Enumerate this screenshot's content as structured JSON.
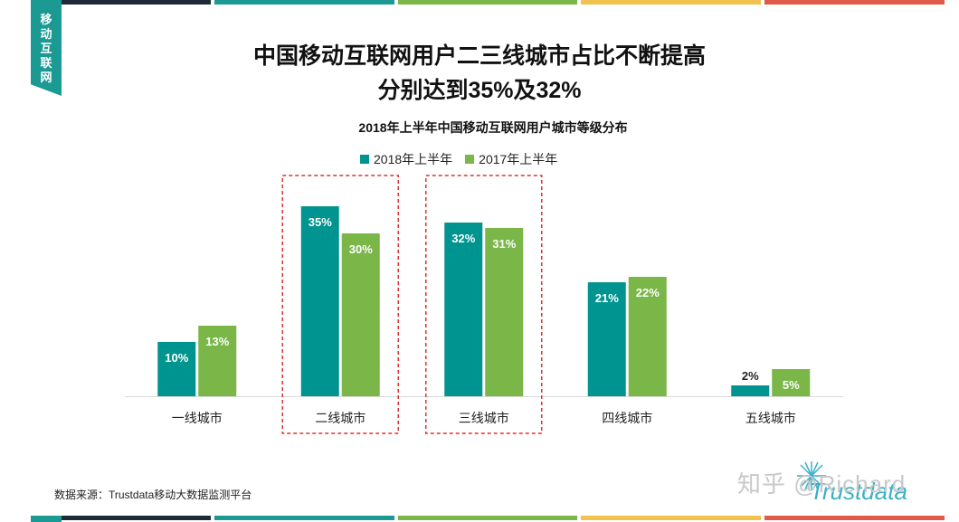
{
  "side_tab": {
    "label": "移动互联网"
  },
  "headline": {
    "line1": "中国移动互联网用户二三线城市占比不断提高",
    "line2": "分别达到35%及32%"
  },
  "source": "数据来源：Trustdata移动大数据监测平台",
  "watermark": "知乎 @Richard",
  "logo": "Trustdata",
  "colors": {
    "series_2018": "#009490",
    "series_2017": "#7ab648",
    "highlight": "#e03030",
    "strip": [
      "#1e2a38",
      "#1a9a92",
      "#7ab648",
      "#f2c14e",
      "#e05a4a"
    ]
  },
  "chart_data": {
    "type": "bar",
    "title": "2018年上半年中国移动互联网用户城市等级分布",
    "categories": [
      "一线城市",
      "二线城市",
      "三线城市",
      "四线城市",
      "五线城市"
    ],
    "series": [
      {
        "name": "2018年上半年",
        "values": [
          10,
          35,
          32,
          21,
          2
        ],
        "labels": [
          "10%",
          "35%",
          "32%",
          "21%",
          "2%"
        ]
      },
      {
        "name": "2017年上半年",
        "values": [
          13,
          30,
          31,
          22,
          5
        ],
        "labels": [
          "13%",
          "30%",
          "31%",
          "22%",
          "5%"
        ]
      }
    ],
    "ylim": [
      0,
      40
    ],
    "highlighted_categories": [
      "二线城市",
      "三线城市"
    ],
    "legend": "top-center",
    "grid": false
  }
}
